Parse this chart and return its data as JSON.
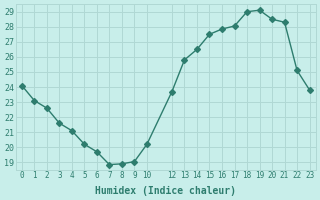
{
  "x": [
    0,
    1,
    2,
    3,
    4,
    5,
    6,
    7,
    8,
    9,
    10,
    12,
    13,
    14,
    15,
    16,
    17,
    18,
    19,
    20,
    21,
    22,
    23
  ],
  "y": [
    24.1,
    23.1,
    22.6,
    21.6,
    21.1,
    20.2,
    19.7,
    18.85,
    18.9,
    19.05,
    20.2,
    23.7,
    25.8,
    26.5,
    27.5,
    27.85,
    28.05,
    29.0,
    29.1,
    28.5,
    28.3,
    25.1,
    23.8
  ],
  "line_color": "#2e7d6e",
  "marker": "D",
  "marker_size": 3,
  "bg_color": "#c8eeea",
  "grid_color": "#b0d8d4",
  "tick_color": "#2e7d6e",
  "label_color": "#2e7d6e",
  "xlabel": "Humidex (Indice chaleur)",
  "yticks": [
    19,
    20,
    21,
    22,
    23,
    24,
    25,
    26,
    27,
    28,
    29
  ],
  "xticks": [
    0,
    1,
    2,
    3,
    4,
    5,
    6,
    7,
    8,
    9,
    10,
    12,
    13,
    14,
    15,
    16,
    17,
    18,
    19,
    20,
    21,
    22,
    23
  ],
  "xlim": [
    -0.5,
    23.5
  ],
  "ylim": [
    18.5,
    29.5
  ]
}
